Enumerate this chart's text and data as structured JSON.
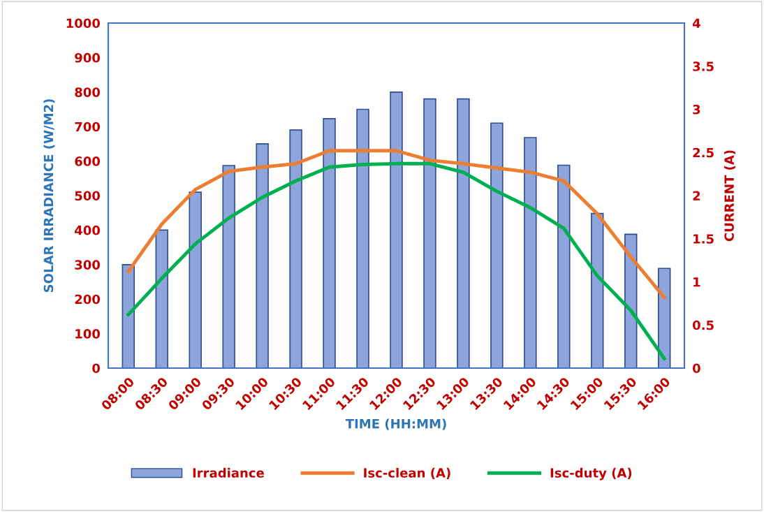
{
  "chart_data": {
    "type": "bar",
    "xlabel": "TIME (HH:MM)",
    "ylabel": "SOLAR IRRADIANCE (W/M2)",
    "y2label": "CURRENT (A)",
    "categories": [
      "08:00",
      "08:30",
      "09:00",
      "09:30",
      "10:00",
      "10:30",
      "11:00",
      "11:30",
      "12:00",
      "12:30",
      "13:00",
      "13:30",
      "14:00",
      "14:30",
      "15:00",
      "15:30",
      "16:00"
    ],
    "series": [
      {
        "name": "Irradiance",
        "color": "#8ea5db",
        "values": [
          300,
          400,
          510,
          587,
          650,
          690,
          723,
          750,
          800,
          780,
          780,
          710,
          668,
          588,
          448,
          388,
          289
        ]
      },
      {
        "name": "Isc-clean (A)",
        "type": "line",
        "axis": "y2",
        "color": "#ed7d31",
        "values": [
          1.12,
          1.67,
          2.07,
          2.28,
          2.33,
          2.37,
          2.52,
          2.52,
          2.52,
          2.41,
          2.37,
          2.32,
          2.27,
          2.17,
          1.79,
          1.29,
          0.82
        ]
      },
      {
        "name": "Isc-duty (A)",
        "type": "line",
        "axis": "y2",
        "color": "#00b050",
        "values": [
          0.62,
          1.04,
          1.44,
          1.74,
          1.98,
          2.17,
          2.33,
          2.36,
          2.37,
          2.37,
          2.27,
          2.05,
          1.86,
          1.62,
          1.07,
          0.67,
          0.11
        ]
      }
    ],
    "ylim": [
      0,
      1000
    ],
    "yticks": [
      0,
      100,
      200,
      300,
      400,
      500,
      600,
      700,
      800,
      900,
      1000
    ],
    "y2lim": [
      0,
      4
    ],
    "y2ticks": [
      0,
      0.5,
      1,
      1.5,
      2,
      2.5,
      3,
      3.5,
      4
    ],
    "grid": false,
    "legend": "bottom",
    "marker": "none",
    "line_style": "solid"
  }
}
